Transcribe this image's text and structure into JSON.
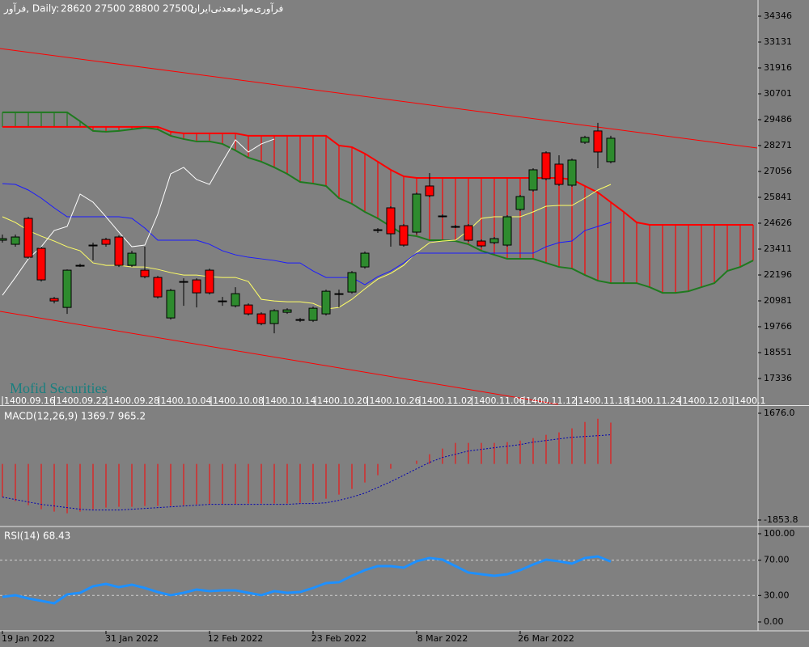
{
  "header": {
    "symbol": "فرآور, Daily:",
    "ohlc": "28620 27500 28800 27500",
    "name": "فرآوری‌موادمعدنی‌ایران"
  },
  "watermark": "Mofid Securities",
  "chart_data": [
    {
      "type": "candlestick",
      "categories": [
        null,
        null,
        null,
        null,
        null,
        null,
        null,
        null,
        null,
        null,
        null,
        null,
        null,
        null,
        null,
        null,
        null,
        null,
        null,
        null,
        null,
        null,
        null,
        null,
        null,
        null,
        null,
        null,
        null,
        null,
        null,
        null,
        null,
        null,
        null,
        null,
        null,
        null,
        null,
        null,
        null,
        null,
        null,
        null,
        null,
        null,
        null,
        null,
        null,
        null,
        null,
        null,
        null,
        null,
        null,
        null,
        null,
        null,
        null
      ],
      "open": [
        23827,
        23637,
        24853,
        23447,
        21091,
        20673,
        22649,
        23561,
        23865,
        23979,
        22649,
        22421,
        22079,
        20179,
        21889,
        21965,
        22421,
        20977,
        20749,
        20787,
        20369,
        19913,
        20445,
        20103,
        20065,
        20369,
        21319,
        21395,
        22573,
        24321,
        25347,
        24511,
        24207,
        26373,
        24967,
        24473,
        24511,
        23789,
        23713,
        23599,
        25271,
        26183,
        27931,
        27399,
        26411,
        28425,
        28957,
        27513,
        null,
        null,
        null,
        null,
        null,
        null,
        null,
        null,
        null,
        null,
        null
      ],
      "high": [
        24093,
        24093,
        24929,
        23523,
        21167,
        22459,
        22725,
        23713,
        23941,
        24055,
        23333,
        23523,
        22155,
        21547,
        22041,
        22041,
        22497,
        21167,
        21623,
        20863,
        20445,
        20597,
        20635,
        20179,
        20711,
        21509,
        21509,
        22383,
        23295,
        24397,
        25423,
        24587,
        26069,
        26981,
        25043,
        24549,
        24587,
        23865,
        23979,
        25005,
        25955,
        27209,
        28007,
        27817,
        27665,
        28729,
        29337,
        28729,
        null,
        null,
        null,
        null,
        null,
        null,
        null,
        null,
        null,
        null,
        null
      ],
      "low": [
        23713,
        23523,
        22953,
        21889,
        20863,
        20369,
        22573,
        22877,
        23523,
        22573,
        22573,
        22041,
        21091,
        20103,
        20749,
        20673,
        21281,
        20749,
        20673,
        20293,
        19837,
        19457,
        20369,
        19989,
        19989,
        20293,
        20673,
        21319,
        22497,
        24169,
        23523,
        23523,
        24093,
        25841,
        24891,
        24397,
        23751,
        23485,
        23637,
        23523,
        25195,
        26107,
        26639,
        26373,
        26335,
        28349,
        27209,
        27437,
        null,
        null,
        null,
        null,
        null,
        null,
        null,
        null,
        null,
        null,
        null
      ],
      "close": [
        23903,
        23979,
        23029,
        21965,
        20977,
        22421,
        22649,
        23599,
        23637,
        22649,
        23219,
        22117,
        21167,
        21471,
        21889,
        21357,
        21357,
        20977,
        21319,
        20369,
        19913,
        20521,
        20559,
        20103,
        20635,
        21433,
        21319,
        22307,
        23219,
        24321,
        24131,
        23599,
        25993,
        25917,
        24967,
        24473,
        23827,
        23561,
        23903,
        24929,
        25879,
        27133,
        26715,
        26449,
        27589,
        28653,
        27969,
        28615,
        null,
        null,
        null,
        null,
        null,
        null,
        null,
        null,
        null,
        null,
        null
      ],
      "up_color": "#2e8b2e",
      "down_color": "#ff0000",
      "senkou_a": {
        "color": "#ff0000",
        "values": [
          29147,
          29147,
          29147,
          29147,
          29147,
          29147,
          29147,
          29147,
          29147,
          29147,
          29147,
          29147,
          29147,
          28919,
          28843,
          28843,
          28843,
          28843,
          28843,
          28729,
          28729,
          28729,
          28729,
          28729,
          28729,
          28729,
          28273,
          28197,
          27893,
          27513,
          27133,
          26829,
          26753,
          26753,
          26753,
          26753,
          26753,
          26753,
          26753,
          26753,
          26753,
          26753,
          26753,
          26753,
          26677,
          26373,
          26069,
          25613,
          25157,
          24663,
          24549,
          24549,
          24549,
          24549,
          24549,
          24549,
          24549,
          24549,
          24549
        ]
      },
      "senkou_b": {
        "color": "#1f7a1f",
        "values": [
          29831,
          29831,
          29831,
          29831,
          29831,
          29831,
          29413,
          28957,
          28919,
          28957,
          29033,
          29109,
          29033,
          28729,
          28577,
          28463,
          28463,
          28349,
          28045,
          27703,
          27513,
          27247,
          26943,
          26563,
          26487,
          26373,
          25803,
          25537,
          25157,
          24853,
          24473,
          24093,
          24017,
          23827,
          23827,
          23789,
          23637,
          23333,
          23143,
          22953,
          22953,
          22953,
          22763,
          22573,
          22497,
          22193,
          21927,
          21813,
          21813,
          21813,
          21623,
          21357,
          21357,
          21433,
          21623,
          21813,
          22383,
          22573,
          22877
        ]
      },
      "series": [
        {
          "color": "#ffff66",
          "values": [
            24929,
            24663,
            24283,
            24017,
            23789,
            23523,
            23333,
            22763,
            22649,
            22649,
            22573,
            22573,
            22459,
            22307,
            22193,
            22193,
            22117,
            22079,
            22079,
            21889,
            21053,
            20977,
            20939,
            20939,
            20863,
            20597,
            20673,
            21053,
            21547,
            22003,
            22269,
            22649,
            23257,
            23713,
            23789,
            23827,
            24283,
            24853,
            24929,
            24929,
            24929,
            25157,
            25423,
            25461,
            25461,
            25803,
            26183,
            26449,
            null,
            null,
            null,
            null,
            null,
            null,
            null,
            null,
            null,
            null,
            null
          ]
        },
        {
          "color": "#1a1aff",
          "values": [
            26487,
            26449,
            26183,
            25803,
            25347,
            24929,
            24929,
            24929,
            24929,
            24929,
            24853,
            24397,
            23827,
            23827,
            23827,
            23827,
            23637,
            23333,
            23143,
            23029,
            22953,
            22877,
            22763,
            22763,
            22383,
            22079,
            22079,
            22079,
            21737,
            22117,
            22383,
            22763,
            23219,
            23219,
            23219,
            23219,
            23219,
            23219,
            23219,
            23219,
            23219,
            23219,
            23523,
            23713,
            23789,
            24283,
            24473,
            24663,
            null,
            null,
            null,
            null,
            null,
            null,
            null,
            null,
            null,
            null,
            null
          ]
        },
        {
          "color": "#ffffff",
          "values": [
            21243,
            22079,
            22953,
            23523,
            24283,
            24473,
            25993,
            25613,
            24929,
            24207,
            23523,
            23599,
            25043,
            26943,
            27247,
            26677,
            26449,
            27513,
            28539,
            27969,
            28349,
            28577,
            null,
            null,
            null,
            null,
            null,
            null,
            null,
            null,
            null,
            null,
            null,
            null,
            null,
            null,
            null,
            null,
            null,
            null,
            null,
            null,
            null,
            null,
            null,
            null,
            null,
            null,
            null,
            null,
            null,
            null,
            null,
            null,
            null,
            null,
            null,
            null,
            null
          ]
        }
      ],
      "ylim": [
        16121,
        35105
      ],
      "yticks": [
        34346,
        33131,
        31916,
        30701,
        29486,
        28271,
        27056,
        25841,
        24626,
        23411,
        22196,
        20981,
        19766,
        18551,
        17336
      ],
      "date_labels": [
        "1400.09.16",
        "1400.09.22",
        "1400.09.28",
        "1400.10.04",
        "1400.10.08",
        "1400.10.14",
        "1400.10.20",
        "1400.10.26",
        "1400.11.02",
        "1400.11.06",
        "1400.11.12",
        "1400.11.18",
        "1400.11.24",
        "1400.12.01",
        "1400.1"
      ]
    },
    {
      "type": "macd",
      "title": "MACD(12,26,9) 1369.7 965.2",
      "series": [
        {
          "color": "#ff0000",
          "style": "histogram",
          "values": [
            -1096,
            -1230,
            -1364,
            -1497,
            -1578,
            -1631,
            -1578,
            -1497,
            -1444,
            -1417,
            -1417,
            -1390,
            -1390,
            -1390,
            -1364,
            -1337,
            -1337,
            -1337,
            -1337,
            -1310,
            -1310,
            -1310,
            -1310,
            -1284,
            -1230,
            -1150,
            -1016,
            -829,
            -615,
            -374,
            -160,
            0,
            107,
            321,
            508,
            695,
            695,
            695,
            695,
            722,
            775,
            856,
            963,
            1043,
            1177,
            1390,
            1497,
            1369.7
          ]
        },
        {
          "color": "#0000b0",
          "style": "dotted",
          "values": [
            -1096,
            -1177,
            -1257,
            -1337,
            -1390,
            -1444,
            -1497,
            -1524,
            -1524,
            -1524,
            -1497,
            -1471,
            -1444,
            -1417,
            -1390,
            -1364,
            -1337,
            -1337,
            -1337,
            -1337,
            -1337,
            -1337,
            -1337,
            -1310,
            -1310,
            -1284,
            -1203,
            -1096,
            -963,
            -775,
            -588,
            -374,
            -160,
            53,
            214,
            321,
            428,
            481,
            535,
            588,
            642,
            722,
            775,
            829,
            882,
            909,
            936,
            965.2
          ]
        }
      ],
      "ylim": [
        -2041,
        1890
      ],
      "yticks": [
        {
          "value": 1676,
          "label": "1676.0"
        },
        {
          "value": -1853.8,
          "label": "-1853.8"
        }
      ]
    },
    {
      "type": "line",
      "title": "RSI(14) 68.43",
      "categories": [
        null,
        null,
        "19 Jan 2022",
        null,
        null,
        null,
        null,
        null,
        null,
        null,
        "31 Jan 2022",
        null,
        null,
        null,
        null,
        null,
        null,
        null,
        "12 Feb 2022",
        null,
        null,
        null,
        null,
        null,
        null,
        null,
        "23 Feb 2022",
        null,
        null,
        null,
        null,
        null,
        null,
        null,
        "8 Mar 2022",
        null,
        null,
        null,
        null,
        null,
        null,
        null,
        "26 Mar 2022",
        null,
        null,
        null,
        null,
        null
      ],
      "series": [
        {
          "color": "#1e90ff",
          "values": [
            28.4,
            30.3,
            26.6,
            23.9,
            21.1,
            31.2,
            33.0,
            40.4,
            43.1,
            39.4,
            42.2,
            38.5,
            33.9,
            30.3,
            33.0,
            36.7,
            34.9,
            35.8,
            35.8,
            33.0,
            30.3,
            34.9,
            33.0,
            33.9,
            38.5,
            44.0,
            45.0,
            52.3,
            58.7,
            63.3,
            63.3,
            61.5,
            68.8,
            72.5,
            70.6,
            63.3,
            56.0,
            54.1,
            52.3,
            54.1,
            58.7,
            65.1,
            70.6,
            68.8,
            66.1,
            72.5,
            74.3,
            68.43
          ]
        }
      ],
      "levels": [
        70,
        30
      ],
      "ylim": [
        -10.1,
        107.3
      ],
      "yticks": [
        {
          "value": 100,
          "label": "100.00"
        },
        {
          "value": 70,
          "label": "70.00"
        },
        {
          "value": 30,
          "label": "30.00"
        },
        {
          "value": 0,
          "label": "0.00"
        }
      ]
    }
  ]
}
